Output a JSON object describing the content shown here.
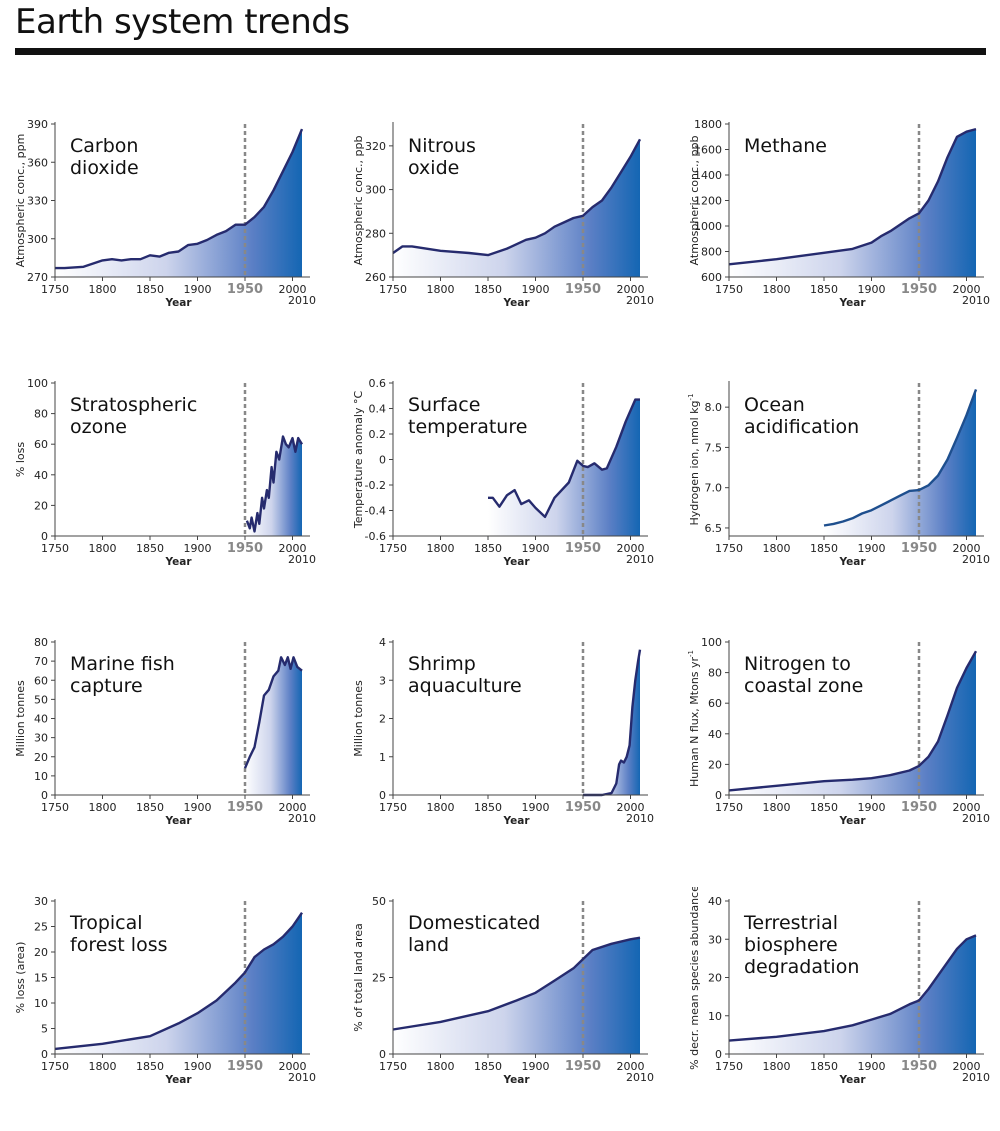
{
  "page": {
    "title": "Earth system trends"
  },
  "colors": {
    "line": "#262b6e",
    "ocean_line": "#1e4f8e",
    "fill_end": "#1466b3",
    "marker_1950": "#888888"
  },
  "common": {
    "xlabel": "Year",
    "x_ticks": [
      "1750",
      "1800",
      "1850",
      "1900",
      "1950",
      "2000"
    ],
    "x_end_label": "2010",
    "highlight_year": "1950",
    "xlim": [
      1750,
      2010
    ]
  },
  "chart_data": [
    {
      "type": "area",
      "title": [
        "Carbon",
        "dioxide"
      ],
      "ylabel": "Atmospheric conc., ppm",
      "ylabel_sup": "",
      "ylim": [
        270,
        390
      ],
      "yticks": [
        270,
        300,
        330,
        360,
        390
      ],
      "x": [
        1750,
        1760,
        1780,
        1800,
        1810,
        1820,
        1830,
        1840,
        1850,
        1860,
        1870,
        1880,
        1890,
        1900,
        1910,
        1920,
        1930,
        1940,
        1950,
        1960,
        1970,
        1980,
        1990,
        2000,
        2010
      ],
      "y": [
        277,
        277,
        278,
        283,
        284,
        283,
        284,
        284,
        287,
        286,
        289,
        290,
        295,
        296,
        299,
        303,
        306,
        311,
        311,
        317,
        325,
        338,
        353,
        368,
        386
      ]
    },
    {
      "type": "area",
      "title": [
        "Nitrous",
        "oxide"
      ],
      "ylabel": "Atmospheric conc., ppb",
      "ylabel_sup": "",
      "ylim": [
        260,
        330
      ],
      "yticks": [
        260,
        280,
        300,
        320
      ],
      "x": [
        1750,
        1760,
        1770,
        1800,
        1830,
        1850,
        1870,
        1890,
        1900,
        1910,
        1920,
        1930,
        1940,
        1950,
        1960,
        1970,
        1980,
        1990,
        2000,
        2010
      ],
      "y": [
        271,
        274,
        274,
        272,
        271,
        270,
        273,
        277,
        278,
        280,
        283,
        285,
        287,
        288,
        292,
        295,
        301,
        308,
        315,
        323
      ]
    },
    {
      "type": "area",
      "title": [
        "Methane"
      ],
      "ylabel": "Atmospheric conc., ppb",
      "ylabel_sup": "",
      "ylim": [
        600,
        1800
      ],
      "yticks": [
        600,
        800,
        1000,
        1200,
        1400,
        1600,
        1800
      ],
      "x": [
        1750,
        1800,
        1850,
        1880,
        1900,
        1910,
        1920,
        1940,
        1950,
        1960,
        1970,
        1980,
        1990,
        2000,
        2010
      ],
      "y": [
        700,
        740,
        790,
        820,
        870,
        920,
        960,
        1060,
        1100,
        1200,
        1350,
        1540,
        1700,
        1740,
        1760
      ]
    },
    {
      "type": "area",
      "title": [
        "Stratospheric",
        "ozone"
      ],
      "ylabel": "% loss",
      "ylabel_sup": "",
      "ylim": [
        0,
        100
      ],
      "yticks": [
        0,
        20,
        40,
        60,
        80,
        100
      ],
      "x": [
        1952,
        1955,
        1957,
        1960,
        1963,
        1965,
        1968,
        1970,
        1973,
        1975,
        1978,
        1980,
        1983,
        1986,
        1990,
        1993,
        1996,
        2000,
        2003,
        2006,
        2010
      ],
      "y": [
        10,
        5,
        12,
        3,
        15,
        8,
        25,
        18,
        30,
        25,
        45,
        35,
        55,
        50,
        65,
        60,
        58,
        64,
        55,
        64,
        60
      ]
    },
    {
      "type": "area",
      "title": [
        "Surface",
        "temperature"
      ],
      "ylabel": "Temperature anomaly °C",
      "ylabel_sup": "",
      "ylim": [
        -0.6,
        0.6
      ],
      "yticks": [
        -0.6,
        -0.4,
        -0.2,
        0,
        0.2,
        0.4,
        0.6
      ],
      "x": [
        1850,
        1855,
        1862,
        1870,
        1878,
        1885,
        1893,
        1900,
        1910,
        1920,
        1935,
        1944,
        1950,
        1955,
        1962,
        1970,
        1975,
        1985,
        1995,
        2005,
        2010
      ],
      "y": [
        -0.3,
        -0.3,
        -0.37,
        -0.28,
        -0.24,
        -0.35,
        -0.32,
        -0.38,
        -0.45,
        -0.3,
        -0.18,
        -0.01,
        -0.05,
        -0.06,
        -0.03,
        -0.08,
        -0.07,
        0.1,
        0.3,
        0.47,
        0.47
      ]
    },
    {
      "type": "area",
      "title": [
        "Ocean",
        "acidification"
      ],
      "ylabel": "Hydrogen ion, nmol kg",
      "ylabel_sup": "-1",
      "ylim": [
        6.4,
        8.3
      ],
      "yticks": [
        6.5,
        7.0,
        7.5,
        8.0
      ],
      "x": [
        1850,
        1860,
        1870,
        1880,
        1890,
        1900,
        1910,
        1920,
        1930,
        1940,
        1950,
        1960,
        1970,
        1980,
        1990,
        2000,
        2010
      ],
      "y": [
        6.53,
        6.55,
        6.58,
        6.62,
        6.68,
        6.72,
        6.78,
        6.84,
        6.9,
        6.96,
        6.97,
        7.03,
        7.15,
        7.35,
        7.62,
        7.9,
        8.22
      ]
    },
    {
      "type": "area",
      "title": [
        "Marine fish",
        "capture"
      ],
      "ylabel": "Million tonnes",
      "ylabel_sup": "",
      "ylim": [
        0,
        80
      ],
      "yticks": [
        0,
        10,
        20,
        30,
        40,
        50,
        60,
        70,
        80
      ],
      "x": [
        1950,
        1955,
        1960,
        1965,
        1970,
        1975,
        1980,
        1985,
        1988,
        1992,
        1995,
        1998,
        2001,
        2005,
        2010
      ],
      "y": [
        14,
        20,
        25,
        38,
        52,
        55,
        62,
        65,
        72,
        68,
        72,
        66,
        72,
        67,
        65
      ]
    },
    {
      "type": "area",
      "title": [
        "Shrimp",
        "aquaculture"
      ],
      "ylabel": "Million tonnes",
      "ylabel_sup": "",
      "ylim": [
        0,
        4
      ],
      "yticks": [
        0,
        1,
        2,
        3,
        4
      ],
      "x": [
        1950,
        1970,
        1980,
        1985,
        1988,
        1990,
        1993,
        1996,
        1999,
        2002,
        2005,
        2008,
        2010
      ],
      "y": [
        0,
        0,
        0.05,
        0.3,
        0.8,
        0.9,
        0.85,
        1.0,
        1.3,
        2.3,
        3.0,
        3.5,
        3.8
      ]
    },
    {
      "type": "area",
      "title": [
        "Nitrogen to",
        "coastal zone"
      ],
      "ylabel": "Human N flux, Mtons yr",
      "ylabel_sup": "-1",
      "ylim": [
        0,
        100
      ],
      "yticks": [
        0,
        20,
        40,
        60,
        80,
        100
      ],
      "x": [
        1750,
        1800,
        1850,
        1880,
        1900,
        1920,
        1940,
        1950,
        1960,
        1970,
        1980,
        1990,
        2000,
        2010
      ],
      "y": [
        3,
        6,
        9,
        10,
        11,
        13,
        16,
        19,
        25,
        35,
        52,
        70,
        83,
        94
      ]
    },
    {
      "type": "area",
      "title": [
        "Tropical",
        "forest loss"
      ],
      "ylabel": "% loss (area)",
      "ylabel_sup": "",
      "ylim": [
        0,
        30
      ],
      "yticks": [
        0,
        5,
        10,
        15,
        20,
        25,
        30
      ],
      "x": [
        1750,
        1800,
        1850,
        1880,
        1900,
        1920,
        1940,
        1950,
        1960,
        1970,
        1980,
        1990,
        2000,
        2010
      ],
      "y": [
        1,
        2,
        3.5,
        6,
        8,
        10.5,
        14,
        16,
        19,
        20.5,
        21.5,
        23,
        25,
        27.7
      ]
    },
    {
      "type": "area",
      "title": [
        "Domesticated",
        "land"
      ],
      "ylabel": "% of total land area",
      "ylabel_sup": "",
      "ylim": [
        0,
        50
      ],
      "yticks": [
        0,
        25,
        50
      ],
      "x": [
        1750,
        1800,
        1850,
        1880,
        1900,
        1920,
        1940,
        1950,
        1960,
        1980,
        2000,
        2010
      ],
      "y": [
        8,
        10.5,
        14,
        17.5,
        20,
        24,
        28,
        31,
        34,
        36,
        37.5,
        38
      ]
    },
    {
      "type": "area",
      "title": [
        "Terrestrial",
        "biosphere",
        "degradation"
      ],
      "ylabel": "% decr. mean species abundance",
      "ylabel_sup": "",
      "ylim": [
        0,
        40
      ],
      "yticks": [
        0,
        10,
        20,
        30,
        40
      ],
      "x": [
        1750,
        1800,
        1850,
        1880,
        1900,
        1920,
        1940,
        1950,
        1960,
        1970,
        1980,
        1990,
        2000,
        2010
      ],
      "y": [
        3.5,
        4.5,
        6,
        7.5,
        9,
        10.5,
        13,
        14,
        17,
        20.5,
        24,
        27.5,
        30,
        31
      ]
    }
  ]
}
